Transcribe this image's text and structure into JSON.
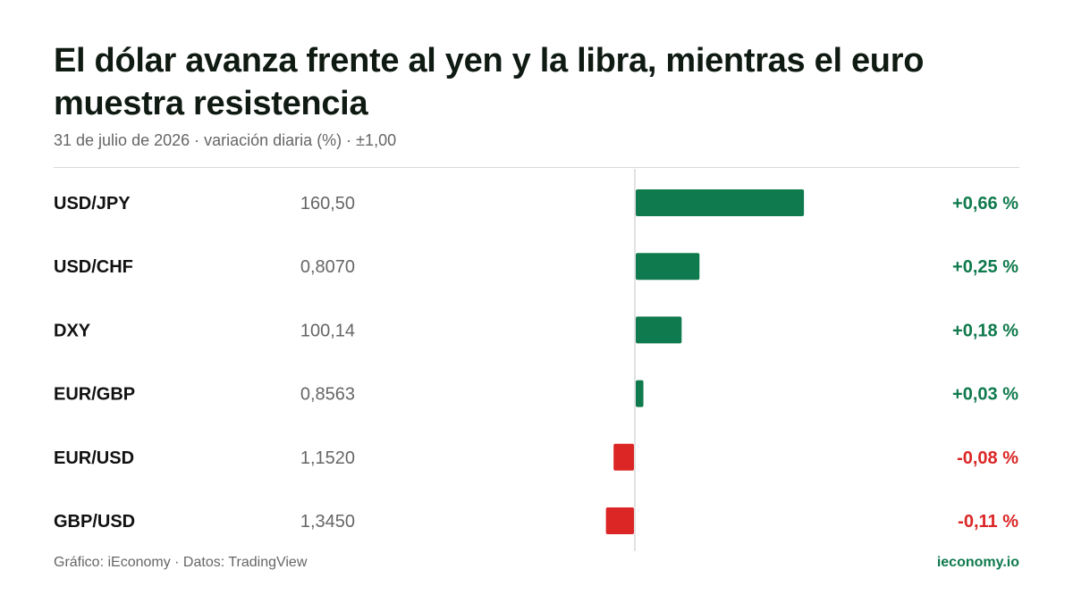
{
  "title": "El dólar avanza frente al yen y la libra, mientras el euro muestra resistencia",
  "subtitle": "31 de julio de 2026 · variación diaria (%) · ±1,00",
  "footer": {
    "source": "Gráfico: iEconomy · Datos: TradingView",
    "brand": "ieconomy.io"
  },
  "colors": {
    "positive": "#0f7a4d",
    "negative": "#dc2626",
    "axis": "#d9d9d9",
    "label": "#111111",
    "price": "#666666"
  },
  "chart_data": {
    "type": "bar",
    "orientation": "horizontal",
    "title": "El dólar avanza frente al yen y la libra, mientras el euro muestra resistencia",
    "subtitle": "31 de julio de 2026 · variación diaria (%) · ±1,00",
    "xlim": [
      -1.0,
      1.0
    ],
    "grid": false,
    "categories": [
      "USD/JPY",
      "USD/CHF",
      "DXY",
      "EUR/GBP",
      "EUR/USD",
      "GBP/USD"
    ],
    "prices": [
      "160,50",
      "0,8070",
      "100,14",
      "0,8563",
      "1,1520",
      "1,3450"
    ],
    "values": [
      0.66,
      0.25,
      0.18,
      0.03,
      -0.08,
      -0.11
    ],
    "value_labels": [
      "+0,66 %",
      "+0,25 %",
      "+0,18 %",
      "+0,03 %",
      "-0,08 %",
      "-0,11 %"
    ]
  }
}
